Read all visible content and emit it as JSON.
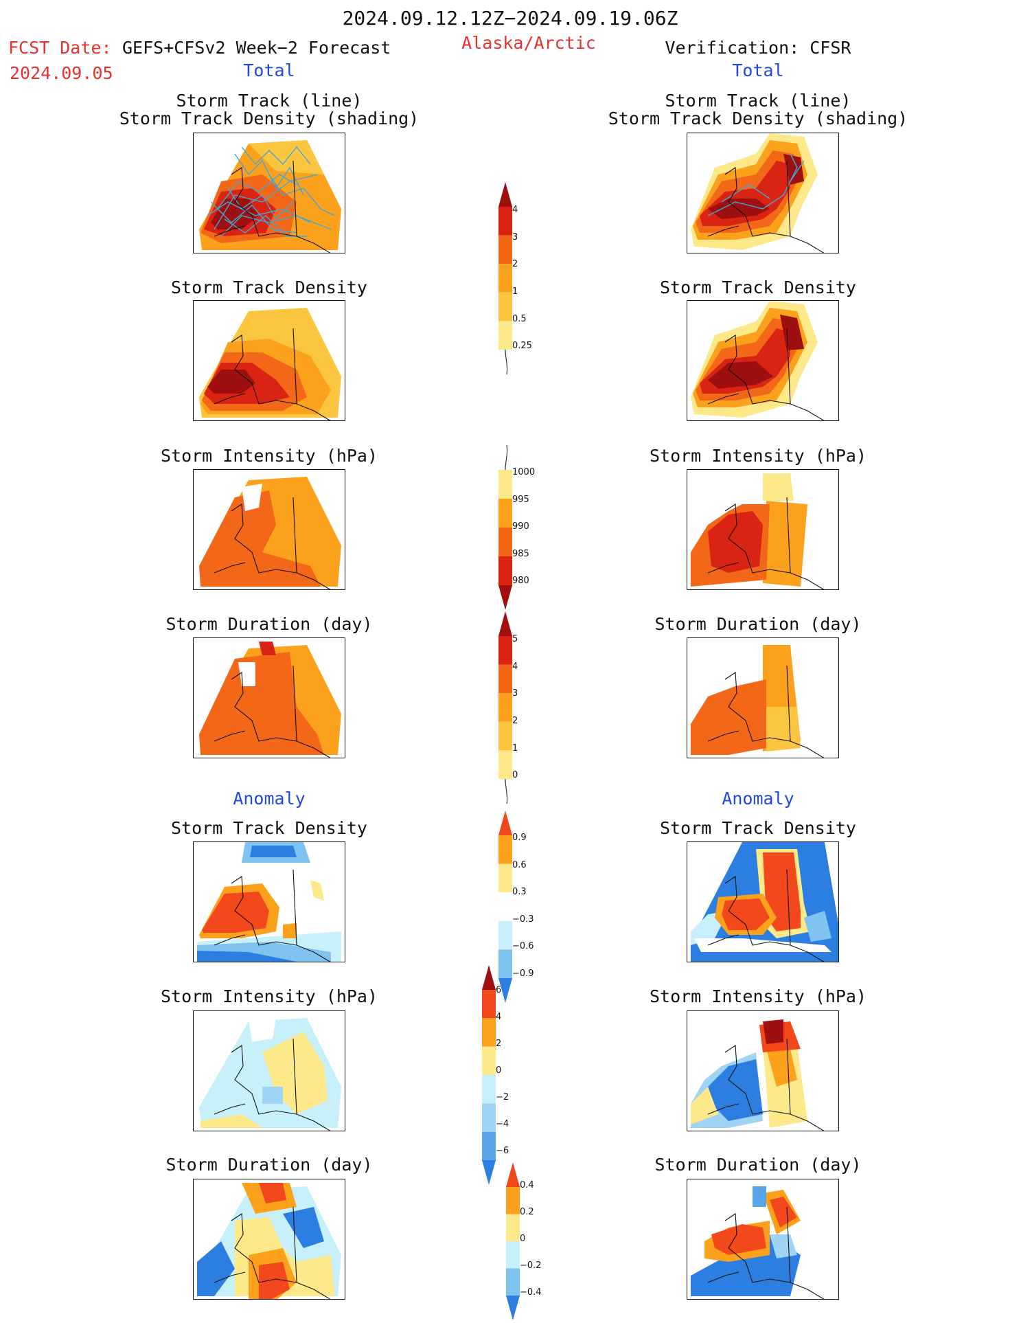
{
  "header": {
    "date_range": "2024.09.12.12Z−2024.09.19.06Z",
    "fcst_label": "FCST Date:",
    "fcst_model": "GEFS+CFSv2 Week−2 Forecast",
    "fcst_date": "2024.09.05",
    "region": "Alaska/Arctic",
    "verification": "Verification: CFSR"
  },
  "sections": {
    "total": "Total",
    "anomaly": "Anomaly"
  },
  "panel_titles": {
    "track_line": "Storm Track (line)",
    "track_shading": "Storm Track Density (shading)",
    "density": "Storm Track Density",
    "intensity": "Storm Intensity (hPa)",
    "duration": "Storm Duration (day)"
  },
  "colorbars": {
    "density_total": {
      "labels": [
        "4",
        "3",
        "2",
        "1",
        "0.5",
        "0.25"
      ],
      "colors": [
        "#9e0f0f",
        "#d92313",
        "#f26718",
        "#fba11c",
        "#fcc53f",
        "#fde989",
        "#fffbc4"
      ]
    },
    "intensity_total": {
      "labels": [
        "1000",
        "995",
        "990",
        "985",
        "980"
      ],
      "colors": [
        "#fffbc4",
        "#fde989",
        "#fba11c",
        "#f26718",
        "#d92313",
        "#9e0f0f"
      ]
    },
    "duration_total": {
      "labels": [
        "5",
        "4",
        "3",
        "2",
        "1",
        "0"
      ],
      "colors": [
        "#9e0f0f",
        "#d92313",
        "#f26718",
        "#fba11c",
        "#fcc53f",
        "#fde989",
        "#fffbc4"
      ]
    },
    "density_anom": {
      "labels": [
        "0.9",
        "0.6",
        "0.3",
        "−0.3",
        "−0.6",
        "−0.9"
      ],
      "colors": [
        "#f2481b",
        "#fba11c",
        "#fde989",
        "#ffffff",
        "#c7f0fa",
        "#7fc3f0",
        "#2c7fe0"
      ]
    },
    "intensity_anom": {
      "labels": [
        "6",
        "4",
        "2",
        "0",
        "−2",
        "−4",
        "−6"
      ],
      "colors": [
        "#9e0f0f",
        "#f2481b",
        "#fba11c",
        "#fde989",
        "#c7f0fa",
        "#9fd4f5",
        "#5aa4ea",
        "#2c7fe0"
      ]
    },
    "duration_anom": {
      "labels": [
        "0.4",
        "0.2",
        "0",
        "−0.2",
        "−0.4"
      ],
      "colors": [
        "#f2481b",
        "#fba11c",
        "#fde989",
        "#c7f0fa",
        "#7fc3f0",
        "#2c7fe0"
      ]
    }
  }
}
